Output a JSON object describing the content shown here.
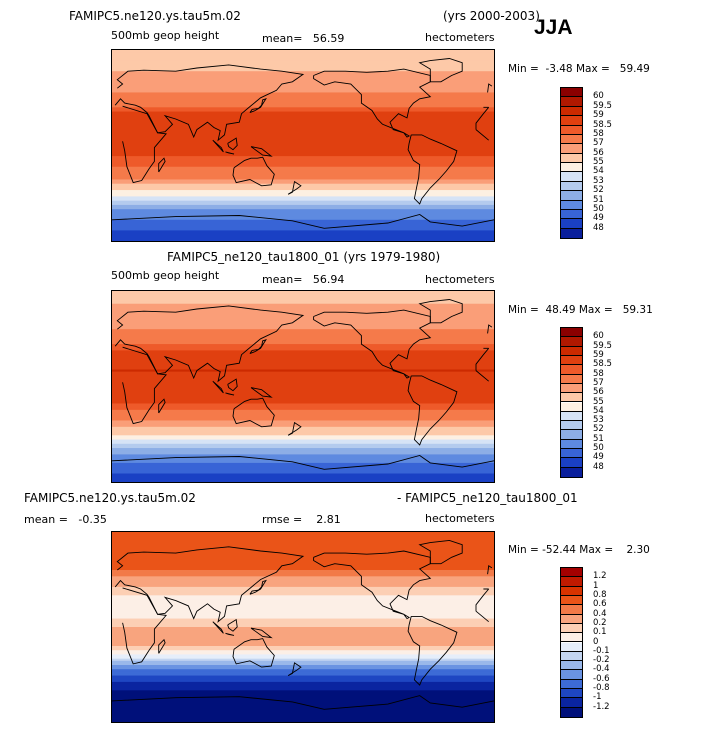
{
  "season": "JJA",
  "panels": [
    {
      "title_left": "FAMIPC5.ne120.ys.tau5m.02",
      "title_right": "(yrs 2000-2003)",
      "variable": "500mb geop height",
      "stat1": "mean=   56.59",
      "units": "hectometers",
      "minmax": "Min =  -3.48 Max =   59.49",
      "colorbar_labels": [
        "60",
        "59.5",
        "59",
        "58.5",
        "58",
        "57",
        "56",
        "55",
        "54",
        "53",
        "52",
        "51",
        "50",
        "49",
        "48"
      ]
    },
    {
      "title_center": "FAMIPC5_ne120_tau1800_01 (yrs 1979-1980)",
      "variable": "500mb geop height",
      "stat1": "mean=   56.94",
      "units": "hectometers",
      "minmax": "Min =  48.49 Max =   59.31",
      "colorbar_labels": [
        "60",
        "59.5",
        "59",
        "58.5",
        "58",
        "57",
        "56",
        "55",
        "54",
        "53",
        "52",
        "51",
        "50",
        "49",
        "48"
      ]
    },
    {
      "title_left": "FAMIPC5.ne120.ys.tau5m.02",
      "title_right": "- FAMIPC5_ne120_tau1800_01",
      "stat1": "mean =   -0.35",
      "stat2": "rmse =    2.81",
      "units": "hectometers",
      "minmax": "Min = -52.44 Max =    2.30",
      "colorbar_labels": [
        "1.2",
        "1",
        "0.8",
        "0.6",
        "0.4",
        "0.2",
        "0.1",
        "0",
        "-0.1",
        "-0.2",
        "-0.4",
        "-0.6",
        "-0.8",
        "-1",
        "-1.2"
      ]
    }
  ],
  "colors": {
    "scale": [
      "#8b0000",
      "#b01800",
      "#cc2a00",
      "#e04010",
      "#ee5a2a",
      "#f57a4a",
      "#fa9e78",
      "#fdc9a8",
      "#fdf0e2",
      "#d6e3f6",
      "#b4cbee",
      "#8daee6",
      "#5e8ae0",
      "#3864d6",
      "#1a40c4",
      "#0a1f9c"
    ],
    "diff_scale": [
      "#a40000",
      "#c01a00",
      "#d83300",
      "#ea5418",
      "#f27a48",
      "#f8a47e",
      "#fccfb4",
      "#fcefe6",
      "#e6eefa",
      "#c3d5f1",
      "#9ab8ea",
      "#6a93e2",
      "#3d6bd6",
      "#1e46c2",
      "#0a24a0",
      "#00107a"
    ],
    "coast": "#000000"
  },
  "chart_data": [
    {
      "type": "heatmap",
      "title": "FAMIPC5.ne120.ys.tau5m.02 (yrs 2000-2003) 500mb geop height",
      "units": "hectometers",
      "mean": 56.59,
      "min": -3.48,
      "max": 59.49,
      "levels": [
        48,
        49,
        50,
        51,
        52,
        53,
        54,
        55,
        56,
        57,
        58,
        58.5,
        59,
        59.5,
        60
      ],
      "zonal_profile": [
        {
          "lat": 90,
          "value": 55.3
        },
        {
          "lat": 60,
          "value": 56.3
        },
        {
          "lat": 45,
          "value": 57.3
        },
        {
          "lat": 30,
          "value": 58.6
        },
        {
          "lat": 15,
          "value": 58.9
        },
        {
          "lat": 0,
          "value": 58.7
        },
        {
          "lat": -15,
          "value": 58.4
        },
        {
          "lat": -30,
          "value": 57.2
        },
        {
          "lat": -45,
          "value": 54.5
        },
        {
          "lat": -60,
          "value": 51.0
        },
        {
          "lat": -75,
          "value": 49.5
        },
        {
          "lat": -90,
          "value": 48.0
        }
      ]
    },
    {
      "type": "heatmap",
      "title": "FAMIPC5_ne120_tau1800_01 (yrs 1979-1980) 500mb geop height",
      "units": "hectometers",
      "mean": 56.94,
      "min": 48.49,
      "max": 59.31,
      "levels": [
        48,
        49,
        50,
        51,
        52,
        53,
        54,
        55,
        56,
        57,
        58,
        58.5,
        59,
        59.5,
        60
      ],
      "zonal_profile": [
        {
          "lat": 90,
          "value": 55.6
        },
        {
          "lat": 60,
          "value": 56.6
        },
        {
          "lat": 45,
          "value": 57.6
        },
        {
          "lat": 30,
          "value": 58.8
        },
        {
          "lat": 15,
          "value": 59.0
        },
        {
          "lat": 0,
          "value": 58.8
        },
        {
          "lat": -15,
          "value": 58.5
        },
        {
          "lat": -30,
          "value": 57.4
        },
        {
          "lat": -45,
          "value": 55.0
        },
        {
          "lat": -60,
          "value": 51.5
        },
        {
          "lat": -75,
          "value": 49.5
        },
        {
          "lat": -90,
          "value": 48.5
        }
      ]
    },
    {
      "type": "heatmap",
      "title": "FAMIPC5.ne120.ys.tau5m.02 - FAMIPC5_ne120_tau1800_01",
      "units": "hectometers",
      "mean": -0.35,
      "rmse": 2.81,
      "min": -52.44,
      "max": 2.3,
      "levels": [
        -1.2,
        -1,
        -0.8,
        -0.6,
        -0.4,
        -0.2,
        -0.1,
        0,
        0.1,
        0.2,
        0.4,
        0.6,
        0.8,
        1,
        1.2
      ],
      "zonal_profile": [
        {
          "lat": 90,
          "value": 0.6
        },
        {
          "lat": 60,
          "value": 0.8
        },
        {
          "lat": 45,
          "value": 0.3
        },
        {
          "lat": 30,
          "value": 0.1
        },
        {
          "lat": 15,
          "value": 0.0
        },
        {
          "lat": 0,
          "value": 0.2
        },
        {
          "lat": -15,
          "value": 0.3
        },
        {
          "lat": -30,
          "value": -0.1
        },
        {
          "lat": -45,
          "value": -0.8
        },
        {
          "lat": -60,
          "value": -1.2
        },
        {
          "lat": -75,
          "value": -1.3
        },
        {
          "lat": -90,
          "value": -1.5
        }
      ]
    }
  ]
}
